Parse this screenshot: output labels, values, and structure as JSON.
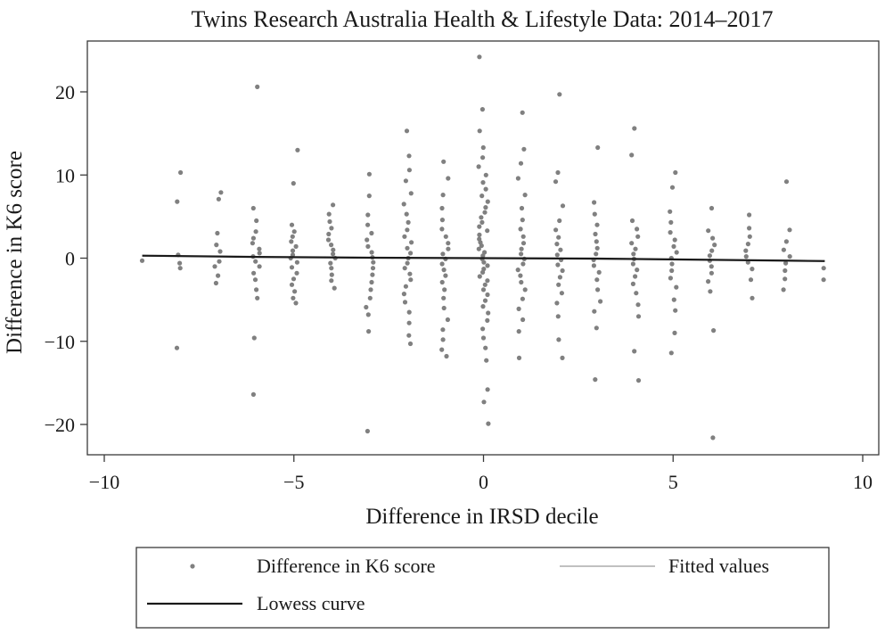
{
  "chart_data": {
    "type": "scatter",
    "title": "Twins Research Australia Health & Lifestyle Data: 2014–2017",
    "xlabel": "Difference in IRSD decile",
    "ylabel": "Difference in K6 score",
    "xlim": [
      -10,
      10
    ],
    "ylim": [
      -24,
      24
    ],
    "x_ticks": [
      -10,
      -5,
      0,
      5,
      10
    ],
    "y_ticks": [
      -20,
      -10,
      0,
      10,
      20
    ],
    "grid": false,
    "legend_position": "bottom",
    "colors": {
      "points": "#808080",
      "lowess": "#1a1a1a",
      "fitted": "#9a9a9a"
    },
    "series": [
      {
        "name": "Difference in K6 score",
        "kind": "points",
        "points": [
          [
            -9,
            -0.3
          ],
          [
            -8,
            10.3
          ],
          [
            -8,
            6.8
          ],
          [
            -8,
            0.4
          ],
          [
            -8,
            -0.6
          ],
          [
            -8,
            -1.2
          ],
          [
            -8,
            -10.8
          ],
          [
            -7,
            7.9
          ],
          [
            -7,
            7.1
          ],
          [
            -7,
            3.0
          ],
          [
            -7,
            1.6
          ],
          [
            -7,
            0.8
          ],
          [
            -7,
            -0.4
          ],
          [
            -7,
            -1.0
          ],
          [
            -7,
            -2.1
          ],
          [
            -7,
            -3.0
          ],
          [
            -6,
            20.6
          ],
          [
            -6,
            6.0
          ],
          [
            -6,
            4.5
          ],
          [
            -6,
            3.2
          ],
          [
            -6,
            2.4
          ],
          [
            -6,
            1.8
          ],
          [
            -6,
            1.1
          ],
          [
            -6,
            0.6
          ],
          [
            -6,
            0.2
          ],
          [
            -6,
            -0.4
          ],
          [
            -6,
            -1.0
          ],
          [
            -6,
            -1.8
          ],
          [
            -6,
            -2.6
          ],
          [
            -6,
            -3.8
          ],
          [
            -6,
            -4.8
          ],
          [
            -6,
            -9.6
          ],
          [
            -6,
            -16.4
          ],
          [
            -5,
            13.0
          ],
          [
            -5,
            9.0
          ],
          [
            -5,
            4.0
          ],
          [
            -5,
            3.2
          ],
          [
            -5,
            2.6
          ],
          [
            -5,
            2.0
          ],
          [
            -5,
            1.4
          ],
          [
            -5,
            0.9
          ],
          [
            -5,
            0.4
          ],
          [
            -5,
            0.0
          ],
          [
            -5,
            -0.5
          ],
          [
            -5,
            -1.1
          ],
          [
            -5,
            -1.8
          ],
          [
            -5,
            -2.5
          ],
          [
            -5,
            -3.2
          ],
          [
            -5,
            -4.0
          ],
          [
            -5,
            -4.8
          ],
          [
            -5,
            -5.4
          ],
          [
            -4,
            6.4
          ],
          [
            -4,
            5.3
          ],
          [
            -4,
            4.4
          ],
          [
            -4,
            3.6
          ],
          [
            -4,
            2.9
          ],
          [
            -4,
            2.2
          ],
          [
            -4,
            1.6
          ],
          [
            -4,
            1.0
          ],
          [
            -4,
            0.5
          ],
          [
            -4,
            0.0
          ],
          [
            -4,
            -0.6
          ],
          [
            -4,
            -1.2
          ],
          [
            -4,
            -2.0
          ],
          [
            -4,
            -2.7
          ],
          [
            -4,
            -3.6
          ],
          [
            -3,
            10.1
          ],
          [
            -3,
            7.5
          ],
          [
            -3,
            5.2
          ],
          [
            -3,
            4.0
          ],
          [
            -3,
            3.0
          ],
          [
            -3,
            2.2
          ],
          [
            -3,
            1.4
          ],
          [
            -3,
            0.7
          ],
          [
            -3,
            0.1
          ],
          [
            -3,
            -0.5
          ],
          [
            -3,
            -1.2
          ],
          [
            -3,
            -2.0
          ],
          [
            -3,
            -2.9
          ],
          [
            -3,
            -3.8
          ],
          [
            -3,
            -4.8
          ],
          [
            -3,
            -5.9
          ],
          [
            -3,
            -6.8
          ],
          [
            -3,
            -8.8
          ],
          [
            -3,
            -20.8
          ],
          [
            -2,
            15.3
          ],
          [
            -2,
            12.3
          ],
          [
            -2,
            10.6
          ],
          [
            -2,
            9.3
          ],
          [
            -2,
            7.8
          ],
          [
            -2,
            6.5
          ],
          [
            -2,
            5.3
          ],
          [
            -2,
            4.3
          ],
          [
            -2,
            3.4
          ],
          [
            -2,
            2.6
          ],
          [
            -2,
            1.9
          ],
          [
            -2,
            1.2
          ],
          [
            -2,
            0.6
          ],
          [
            -2,
            0.0
          ],
          [
            -2,
            -0.6
          ],
          [
            -2,
            -1.2
          ],
          [
            -2,
            -1.9
          ],
          [
            -2,
            -2.6
          ],
          [
            -2,
            -3.4
          ],
          [
            -2,
            -4.3
          ],
          [
            -2,
            -5.3
          ],
          [
            -2,
            -6.5
          ],
          [
            -2,
            -7.8
          ],
          [
            -2,
            -9.3
          ],
          [
            -2,
            -10.3
          ],
          [
            -1,
            11.6
          ],
          [
            -1,
            9.6
          ],
          [
            -1,
            7.6
          ],
          [
            -1,
            6.0
          ],
          [
            -1,
            4.6
          ],
          [
            -1,
            3.5
          ],
          [
            -1,
            2.6
          ],
          [
            -1,
            1.8
          ],
          [
            -1,
            1.1
          ],
          [
            -1,
            0.5
          ],
          [
            -1,
            -0.1
          ],
          [
            -1,
            -0.7
          ],
          [
            -1,
            -1.4
          ],
          [
            -1,
            -2.1
          ],
          [
            -1,
            -2.9
          ],
          [
            -1,
            -3.8
          ],
          [
            -1,
            -4.8
          ],
          [
            -1,
            -6.0
          ],
          [
            -1,
            -7.4
          ],
          [
            -1,
            -8.6
          ],
          [
            -1,
            -9.8
          ],
          [
            -1,
            -11.0
          ],
          [
            -1,
            -11.8
          ],
          [
            0,
            24.2
          ],
          [
            0,
            17.9
          ],
          [
            0,
            15.3
          ],
          [
            0,
            13.3
          ],
          [
            0,
            12.1
          ],
          [
            0,
            11.0
          ],
          [
            0,
            10.0
          ],
          [
            0,
            9.1
          ],
          [
            0,
            8.3
          ],
          [
            0,
            7.5
          ],
          [
            0,
            6.8
          ],
          [
            0,
            6.1
          ],
          [
            0,
            5.5
          ],
          [
            0,
            4.9
          ],
          [
            0,
            4.3
          ],
          [
            0,
            3.8
          ],
          [
            0,
            3.3
          ],
          [
            0,
            2.8
          ],
          [
            0,
            2.3
          ],
          [
            0,
            1.9
          ],
          [
            0,
            1.5
          ],
          [
            0,
            1.1
          ],
          [
            0,
            0.7
          ],
          [
            0,
            0.3
          ],
          [
            0,
            -0.1
          ],
          [
            0,
            -0.5
          ],
          [
            0,
            -0.9
          ],
          [
            0,
            -1.3
          ],
          [
            0,
            -1.7
          ],
          [
            0,
            -2.2
          ],
          [
            0,
            -2.7
          ],
          [
            0,
            -3.2
          ],
          [
            0,
            -3.8
          ],
          [
            0,
            -4.4
          ],
          [
            0,
            -5.1
          ],
          [
            0,
            -5.8
          ],
          [
            0,
            -6.6
          ],
          [
            0,
            -7.5
          ],
          [
            0,
            -8.5
          ],
          [
            0,
            -9.6
          ],
          [
            0,
            -10.8
          ],
          [
            0,
            -12.3
          ],
          [
            0,
            -15.8
          ],
          [
            0,
            -17.3
          ],
          [
            0,
            -19.9
          ],
          [
            1,
            17.5
          ],
          [
            1,
            13.1
          ],
          [
            1,
            11.4
          ],
          [
            1,
            9.6
          ],
          [
            1,
            7.6
          ],
          [
            1,
            6.0
          ],
          [
            1,
            4.6
          ],
          [
            1,
            3.5
          ],
          [
            1,
            2.6
          ],
          [
            1,
            1.8
          ],
          [
            1,
            1.1
          ],
          [
            1,
            0.5
          ],
          [
            1,
            -0.1
          ],
          [
            1,
            -0.7
          ],
          [
            1,
            -1.4
          ],
          [
            1,
            -2.1
          ],
          [
            1,
            -2.9
          ],
          [
            1,
            -3.8
          ],
          [
            1,
            -4.9
          ],
          [
            1,
            -6.1
          ],
          [
            1,
            -7.4
          ],
          [
            1,
            -8.8
          ],
          [
            1,
            -12.0
          ],
          [
            2,
            19.7
          ],
          [
            2,
            10.3
          ],
          [
            2,
            9.2
          ],
          [
            2,
            6.3
          ],
          [
            2,
            4.5
          ],
          [
            2,
            3.4
          ],
          [
            2,
            2.5
          ],
          [
            2,
            1.7
          ],
          [
            2,
            1.0
          ],
          [
            2,
            0.4
          ],
          [
            2,
            -0.2
          ],
          [
            2,
            -0.8
          ],
          [
            2,
            -1.5
          ],
          [
            2,
            -2.3
          ],
          [
            2,
            -3.2
          ],
          [
            2,
            -4.2
          ],
          [
            2,
            -5.4
          ],
          [
            2,
            -7.0
          ],
          [
            2,
            -9.8
          ],
          [
            2,
            -12.0
          ],
          [
            3,
            13.3
          ],
          [
            3,
            6.7
          ],
          [
            3,
            5.3
          ],
          [
            3,
            4.0
          ],
          [
            3,
            2.9
          ],
          [
            3,
            2.0
          ],
          [
            3,
            1.2
          ],
          [
            3,
            0.5
          ],
          [
            3,
            -0.2
          ],
          [
            3,
            -0.9
          ],
          [
            3,
            -1.7
          ],
          [
            3,
            -2.6
          ],
          [
            3,
            -3.8
          ],
          [
            3,
            -5.2
          ],
          [
            3,
            -6.4
          ],
          [
            3,
            -8.4
          ],
          [
            3,
            -14.6
          ],
          [
            4,
            15.6
          ],
          [
            4,
            12.4
          ],
          [
            4,
            4.5
          ],
          [
            4,
            3.5
          ],
          [
            4,
            2.6
          ],
          [
            4,
            1.8
          ],
          [
            4,
            1.1
          ],
          [
            4,
            0.5
          ],
          [
            4,
            -0.1
          ],
          [
            4,
            -0.7
          ],
          [
            4,
            -1.4
          ],
          [
            4,
            -2.2
          ],
          [
            4,
            -3.1
          ],
          [
            4,
            -4.2
          ],
          [
            4,
            -5.6
          ],
          [
            4,
            -7.0
          ],
          [
            4,
            -11.2
          ],
          [
            4,
            -14.7
          ],
          [
            5,
            10.3
          ],
          [
            5,
            8.5
          ],
          [
            5,
            5.6
          ],
          [
            5,
            4.3
          ],
          [
            5,
            3.1
          ],
          [
            5,
            2.2
          ],
          [
            5,
            1.4
          ],
          [
            5,
            0.7
          ],
          [
            5,
            0.0
          ],
          [
            5,
            -0.7
          ],
          [
            5,
            -1.5
          ],
          [
            5,
            -2.4
          ],
          [
            5,
            -3.5
          ],
          [
            5,
            -5.0
          ],
          [
            5,
            -6.3
          ],
          [
            5,
            -9.0
          ],
          [
            5,
            -11.4
          ],
          [
            6,
            6.0
          ],
          [
            6,
            3.3
          ],
          [
            6,
            2.4
          ],
          [
            6,
            1.6
          ],
          [
            6,
            0.9
          ],
          [
            6,
            0.3
          ],
          [
            6,
            -0.3
          ],
          [
            6,
            -1.0
          ],
          [
            6,
            -1.8
          ],
          [
            6,
            -2.8
          ],
          [
            6,
            -4.0
          ],
          [
            6,
            -8.7
          ],
          [
            6,
            -21.6
          ],
          [
            7,
            5.2
          ],
          [
            7,
            3.6
          ],
          [
            7,
            2.6
          ],
          [
            7,
            1.7
          ],
          [
            7,
            0.9
          ],
          [
            7,
            0.2
          ],
          [
            7,
            -0.5
          ],
          [
            7,
            -1.3
          ],
          [
            7,
            -2.6
          ],
          [
            7,
            -4.8
          ],
          [
            8,
            9.2
          ],
          [
            8,
            3.4
          ],
          [
            8,
            2.0
          ],
          [
            8,
            1.0
          ],
          [
            8,
            0.2
          ],
          [
            8,
            -0.6
          ],
          [
            8,
            -1.5
          ],
          [
            8,
            -2.5
          ],
          [
            8,
            -3.8
          ],
          [
            9,
            -1.2
          ],
          [
            9,
            -2.6
          ]
        ]
      },
      {
        "name": "Fitted values",
        "kind": "line",
        "points": [
          [
            -9,
            0.25
          ],
          [
            9,
            -0.3
          ]
        ]
      },
      {
        "name": "Lowess curve",
        "kind": "line",
        "points": [
          [
            -9,
            0.3
          ],
          [
            -6,
            0.15
          ],
          [
            -3,
            0.05
          ],
          [
            0,
            0.0
          ],
          [
            3,
            -0.05
          ],
          [
            6,
            -0.2
          ],
          [
            9,
            -0.35
          ]
        ]
      }
    ],
    "legend": [
      {
        "label": "Difference in K6 score",
        "symbol": "dot"
      },
      {
        "label": "Fitted values",
        "symbol": "thin-line"
      },
      {
        "label": "Lowess curve",
        "symbol": "thick-line"
      }
    ]
  }
}
